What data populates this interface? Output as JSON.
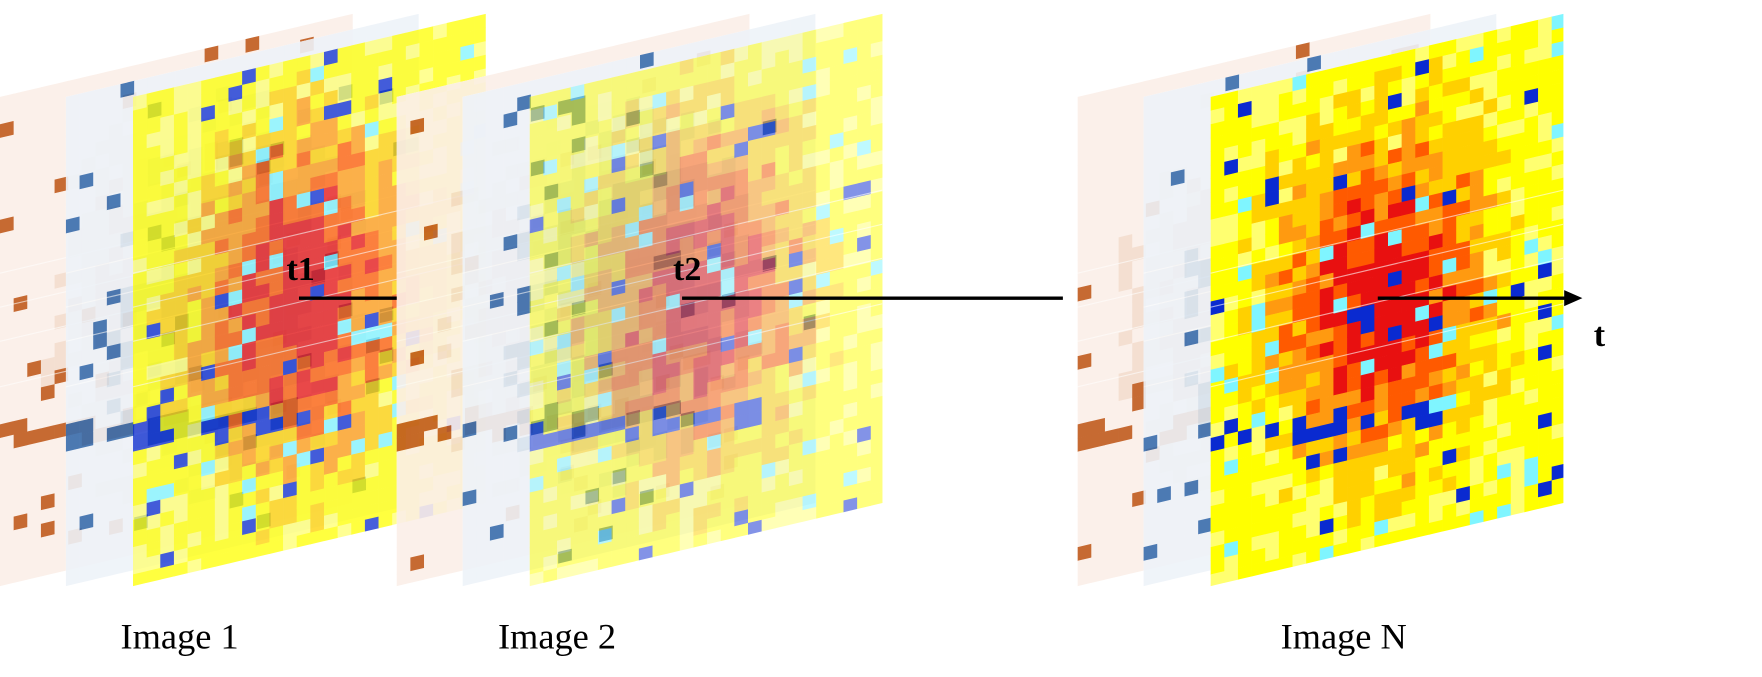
{
  "timeline": {
    "labels": [
      "t1",
      "t2",
      "t"
    ]
  },
  "images": [
    {
      "label": "Image 1"
    },
    {
      "label": "Image 2"
    },
    {
      "label": "Image N"
    }
  ]
}
